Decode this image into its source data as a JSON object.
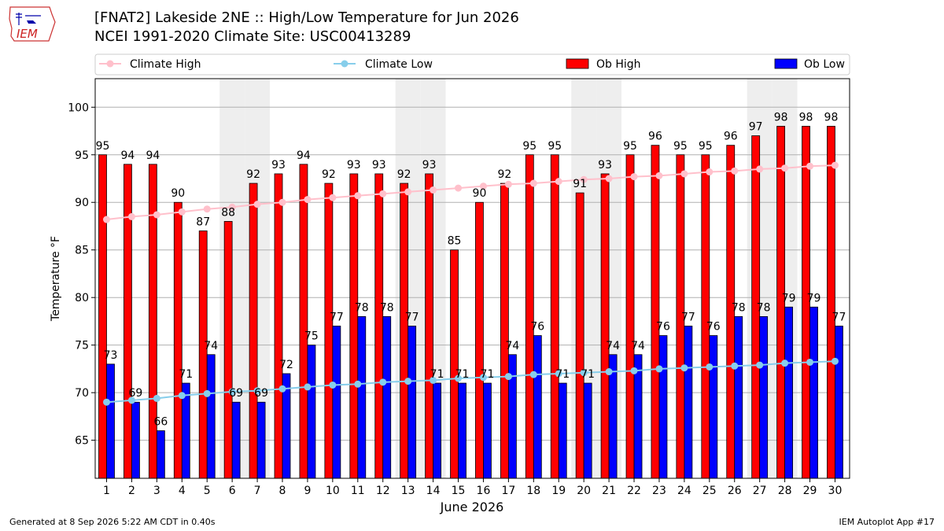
{
  "title": "[FNAT2] Lakeside 2NE :: High/Low Temperature for Jun 2026",
  "subtitle": "NCEI 1991-2020 Climate Site: USC00413289",
  "logo_text": "IEM",
  "footer_left": "Generated at 8 Sep 2026 5:22 AM CDT in 0.40s",
  "footer_right": "IEM Autoplot App #17",
  "colors": {
    "ob_high": "#ff0000",
    "ob_low": "#0000ff",
    "climate_high": "#ffc0cb",
    "climate_low": "#87ceeb",
    "weekend_band": "#eeeeee",
    "grid": "#b0b0b0"
  },
  "chart_data": {
    "type": "bar",
    "xlabel": "June 2026",
    "ylabel": "Temperature °F",
    "ylim": [
      61,
      103
    ],
    "yticks": [
      65,
      70,
      75,
      80,
      85,
      90,
      95,
      100
    ],
    "grid": "horizontal",
    "legend_position": "top",
    "days": [
      1,
      2,
      3,
      4,
      5,
      6,
      7,
      8,
      9,
      10,
      11,
      12,
      13,
      14,
      15,
      16,
      17,
      18,
      19,
      20,
      21,
      22,
      23,
      24,
      25,
      26,
      27,
      28,
      29,
      30
    ],
    "shaded_days": [
      6,
      7,
      13,
      14,
      20,
      21,
      27,
      28
    ],
    "series": [
      {
        "name": "Climate High",
        "kind": "line",
        "values": [
          88.2,
          88.5,
          88.7,
          89.0,
          89.3,
          89.5,
          89.8,
          90.0,
          90.3,
          90.5,
          90.7,
          90.9,
          91.1,
          91.3,
          91.5,
          91.7,
          91.9,
          92.0,
          92.2,
          92.4,
          92.5,
          92.7,
          92.8,
          93.0,
          93.2,
          93.3,
          93.5,
          93.6,
          93.8,
          93.9
        ]
      },
      {
        "name": "Climate Low",
        "kind": "line",
        "values": [
          69.0,
          69.2,
          69.4,
          69.7,
          69.9,
          70.1,
          70.2,
          70.4,
          70.6,
          70.8,
          70.9,
          71.1,
          71.2,
          71.3,
          71.5,
          71.6,
          71.7,
          71.9,
          72.0,
          72.1,
          72.2,
          72.3,
          72.5,
          72.6,
          72.7,
          72.8,
          72.9,
          73.1,
          73.2,
          73.3
        ]
      },
      {
        "name": "Ob High",
        "kind": "bar",
        "values": [
          95,
          94,
          94,
          90,
          87,
          88,
          92,
          93,
          94,
          92,
          93,
          93,
          92,
          93,
          85,
          90,
          92,
          95,
          95,
          91,
          93,
          95,
          96,
          95,
          95,
          96,
          97,
          98,
          98,
          98
        ]
      },
      {
        "name": "Ob Low",
        "kind": "bar",
        "values": [
          73,
          69,
          66,
          71,
          74,
          69,
          69,
          72,
          75,
          77,
          78,
          78,
          77,
          71,
          71,
          71,
          74,
          76,
          71,
          71,
          74,
          74,
          76,
          77,
          76,
          78,
          78,
          79,
          79,
          77
        ]
      }
    ]
  }
}
